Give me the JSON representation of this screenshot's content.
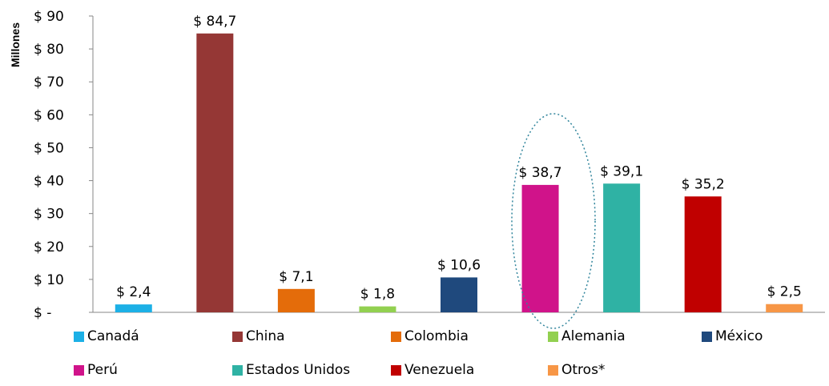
{
  "chart_data": {
    "type": "bar",
    "ylabel": "Millones",
    "ylim": [
      0,
      90
    ],
    "yticks": [
      0,
      10,
      20,
      30,
      40,
      50,
      60,
      70,
      80,
      90
    ],
    "ytick_labels": [
      "$ -",
      "$ 10",
      "$ 20",
      "$ 30",
      "$ 40",
      "$ 50",
      "$ 60",
      "$ 70",
      "$ 80",
      "$ 90"
    ],
    "grid": false,
    "legend_position": "bottom",
    "categories": [
      "Canadá",
      "China",
      "Colombia",
      "Alemania",
      "México",
      "Perú",
      "Estados Unidos",
      "Venezuela",
      "Otros*"
    ],
    "values": [
      2.4,
      84.7,
      7.1,
      1.8,
      10.6,
      38.7,
      39.1,
      35.2,
      2.5
    ],
    "data_labels": [
      "$ 2,4",
      "$ 84,7",
      "$ 7,1",
      "$ 1,8",
      "$ 10,6",
      "$ 38,7",
      "$ 39,1",
      "$ 35,2",
      "$ 2,5"
    ],
    "colors": [
      "#1cb0e6",
      "#953735",
      "#e46c0a",
      "#92d050",
      "#1f497d",
      "#d0138a",
      "#2fb2a4",
      "#c00000",
      "#f79646"
    ],
    "highlight": "Perú"
  }
}
